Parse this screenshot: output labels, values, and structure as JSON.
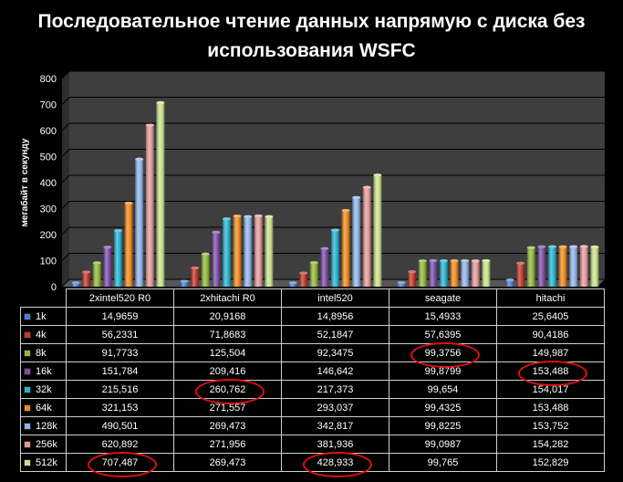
{
  "chart_data": {
    "type": "bar",
    "title": "Последовательное чтение данных напрямую с диска без использования WSFC",
    "ylabel": "мегабайт в секунду",
    "ylim": [
      0,
      800
    ],
    "yticks": [
      "0",
      "100",
      "200",
      "300",
      "400",
      "500",
      "600",
      "700",
      "800"
    ],
    "grid": true,
    "legend": "table",
    "categories": [
      "2xintel520 R0",
      "2xhitachi R0",
      "intel520",
      "seagate",
      "hitachi"
    ],
    "series": [
      {
        "name": "1k",
        "color": "#4a7fd0",
        "values": [
          14.9659,
          20.9168,
          14.8956,
          15.4933,
          25.6405
        ],
        "labels": [
          "14,9659",
          "20,9168",
          "14,8956",
          "15,4933",
          "25,6405"
        ]
      },
      {
        "name": "4k",
        "color": "#c0392b",
        "values": [
          56.2331,
          71.8683,
          52.1847,
          57.6395,
          90.4186
        ],
        "labels": [
          "56,2331",
          "71,8683",
          "52,1847",
          "57,6395",
          "90,4186"
        ]
      },
      {
        "name": "8k",
        "color": "#8fb83a",
        "values": [
          91.7733,
          125.504,
          92.3475,
          99.3756,
          149.987
        ],
        "labels": [
          "91,7733",
          "125,504",
          "92,3475",
          "99,3756",
          "149,987"
        ]
      },
      {
        "name": "16k",
        "color": "#7a4fa6",
        "values": [
          151.784,
          209.416,
          146.642,
          99.8799,
          153.488
        ],
        "labels": [
          "151,784",
          "209,416",
          "146,642",
          "99,8799",
          "153,488"
        ]
      },
      {
        "name": "32k",
        "color": "#28b3d0",
        "values": [
          215.516,
          260.762,
          217.373,
          99.654,
          154.017
        ],
        "labels": [
          "215,516",
          "260,762",
          "217,373",
          "99,654",
          "154,017"
        ]
      },
      {
        "name": "64k",
        "color": "#f08a1c",
        "values": [
          321.153,
          271.557,
          293.037,
          99.4325,
          153.488
        ],
        "labels": [
          "321,153",
          "271,557",
          "293,037",
          "99,4325",
          "153,488"
        ]
      },
      {
        "name": "128k",
        "color": "#8fb4e8",
        "values": [
          490.501,
          269.473,
          342.817,
          99.8225,
          153.752
        ],
        "labels": [
          "490,501",
          "269,473",
          "342,817",
          "99,8225",
          "153,752"
        ]
      },
      {
        "name": "256k",
        "color": "#e39a98",
        "values": [
          620.892,
          271.956,
          381.936,
          99.0987,
          154.282
        ],
        "labels": [
          "620,892",
          "271,956",
          "381,936",
          "99,0987",
          "154,282"
        ]
      },
      {
        "name": "512k",
        "color": "#c9e28a",
        "values": [
          707.487,
          269.473,
          428.933,
          99.765,
          152.829
        ],
        "labels": [
          "707,487",
          "269,473",
          "428,933",
          "99,765",
          "152,829"
        ]
      }
    ],
    "highlighted_cells": [
      {
        "series": "8k",
        "category": "seagate"
      },
      {
        "series": "16k",
        "category": "hitachi"
      },
      {
        "series": "32k",
        "category": "2xhitachi R0"
      },
      {
        "series": "512k",
        "category": "2xintel520 R0"
      },
      {
        "series": "512k",
        "category": "intel520"
      }
    ],
    "highlight_color": "#e01010"
  }
}
